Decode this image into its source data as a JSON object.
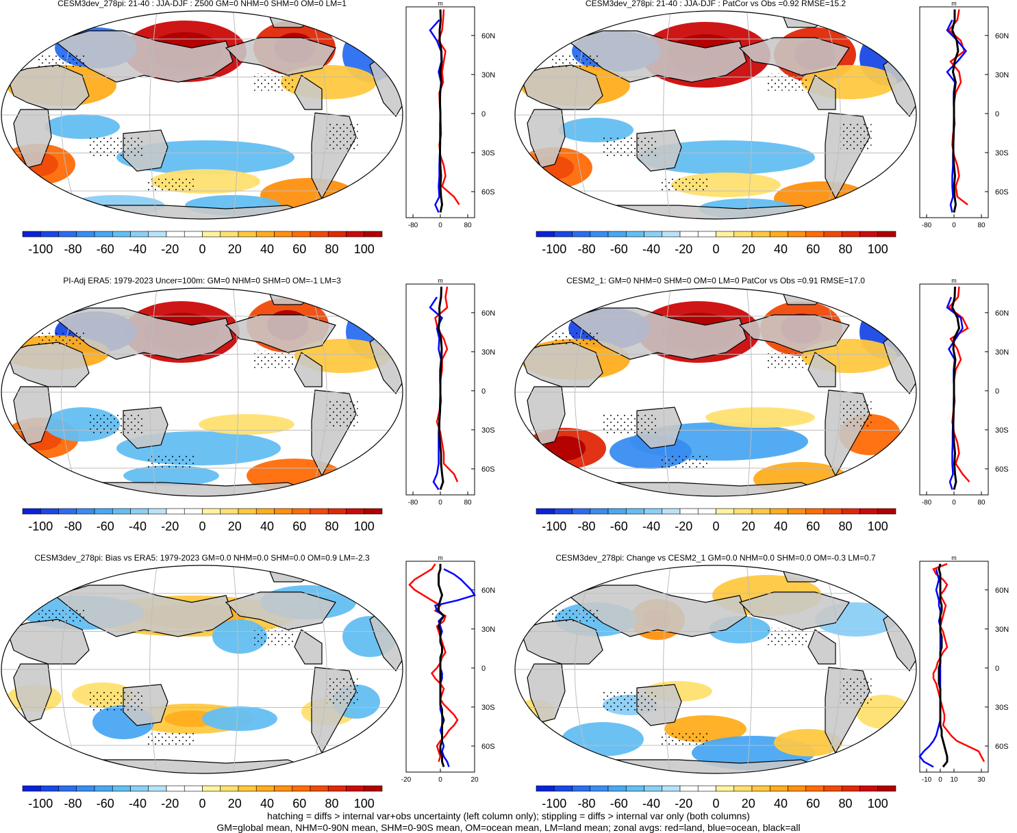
{
  "figure": {
    "footer_line1": "hatching = diffs > internal var+obs uncertainty (left column only); stippling = diffs > internal var only (both columns)",
    "footer_line2": "GM=global mean, NHM=0-90N mean, SHM=0-90S mean, OM=ocean mean, LM=land mean; zonal avgs: red=land, blue=ocean, black=all"
  },
  "colors": {
    "land": "#c8c8c8",
    "grid": "#bdbdbd",
    "zonal_land": "#ff0000",
    "zonal_ocean": "#0000ff",
    "zonal_all": "#000000",
    "stipple": "#000000",
    "palette": [
      "#0a22d8",
      "#1a48e6",
      "#2a6ef0",
      "#3a8cf0",
      "#4aa8f2",
      "#64bef2",
      "#8ccff5",
      "#b8e2f8",
      "#ffffff",
      "#ffffff",
      "#fff3a0",
      "#ffe070",
      "#ffc840",
      "#ffad1e",
      "#ff9010",
      "#ff6c08",
      "#f04a08",
      "#e02808",
      "#cc0a0a",
      "#b00000"
    ]
  },
  "chart_data": [
    {
      "type": "heatmap",
      "title": "CESM3dev_278pi: 21-40 : JJA-DJF : Z500 GM=0 NHM=0 SHM=0 OM=0 LM=1",
      "colorbar_labels": [
        "-100",
        "-80",
        "-60",
        "-40",
        "-20",
        "0",
        "20",
        "40",
        "60",
        "80",
        "100"
      ],
      "zonal_unit": "m",
      "zonal_xlim": [
        -100,
        100
      ],
      "zonal_xticks": [
        "-80",
        "0",
        "80"
      ],
      "lat_labels": [
        "60N",
        "30N",
        "0",
        "30S",
        "60S"
      ],
      "lats": [
        80,
        72,
        64,
        56,
        48,
        40,
        32,
        24,
        16,
        8,
        0,
        -8,
        -16,
        -24,
        -32,
        -40,
        -48,
        -56,
        -64,
        -70,
        -76
      ],
      "zonal_land": [
        10,
        8,
        5,
        -5,
        15,
        10,
        5,
        8,
        -3,
        -2,
        0,
        1,
        2,
        -3,
        0,
        10,
        15,
        5,
        40,
        55,
        null
      ],
      "zonal_ocean": [
        null,
        -3,
        -30,
        -10,
        2,
        3,
        -5,
        2,
        0,
        -1,
        0,
        -1,
        -1,
        0,
        -2,
        -3,
        -3,
        -5,
        -3,
        -15,
        -5
      ],
      "zonal_all": [
        0,
        1,
        -2,
        -2,
        3,
        4,
        0,
        3,
        -1,
        -1,
        0,
        0,
        0,
        -1,
        -1,
        0,
        2,
        0,
        2,
        5,
        0
      ]
    },
    {
      "type": "heatmap",
      "title": "CESM3dev_278pi: 21-40 : JJA-DJF : PatCor vs Obs =0.92 RMSE=15.2",
      "colorbar_labels": [
        "-100",
        "-80",
        "-60",
        "-40",
        "-20",
        "0",
        "20",
        "40",
        "60",
        "80",
        "100"
      ],
      "zonal_unit": "m",
      "zonal_xlim": [
        -100,
        100
      ],
      "zonal_xticks": [
        "-80",
        "0",
        "80"
      ],
      "lat_labels": [
        "60N",
        "30N",
        "0",
        "30S",
        "60S"
      ],
      "lats": [
        80,
        72,
        64,
        56,
        48,
        40,
        32,
        24,
        16,
        8,
        0,
        -8,
        -16,
        -24,
        -32,
        -40,
        -48,
        -56,
        -64,
        -70,
        -76
      ],
      "zonal_land": [
        15,
        10,
        -15,
        20,
        30,
        -10,
        15,
        20,
        5,
        0,
        0,
        2,
        -3,
        -5,
        0,
        10,
        15,
        5,
        10,
        40,
        null
      ],
      "zonal_ocean": [
        null,
        -5,
        -20,
        10,
        35,
        10,
        -20,
        3,
        -1,
        -1,
        0,
        -1,
        -1,
        -2,
        -3,
        -3,
        -5,
        -5,
        -3,
        -10,
        -5
      ],
      "zonal_all": [
        2,
        2,
        -5,
        8,
        12,
        2,
        -3,
        5,
        1,
        0,
        0,
        0,
        -1,
        -2,
        -2,
        0,
        3,
        0,
        2,
        5,
        0
      ]
    },
    {
      "type": "heatmap",
      "title": "PI-Adj ERA5: 1979-2023 Uncer=100m: GM=0 NHM=0 SHM=0 OM=-1 LM=3",
      "colorbar_labels": [
        "-100",
        "-80",
        "-60",
        "-40",
        "-20",
        "0",
        "20",
        "40",
        "60",
        "80",
        "100"
      ],
      "zonal_unit": "m",
      "zonal_xlim": [
        -100,
        100
      ],
      "zonal_xticks": [
        "-80",
        "0",
        "80"
      ],
      "lat_labels": [
        "60N",
        "30N",
        "0",
        "30S",
        "60S"
      ],
      "lats": [
        80,
        72,
        64,
        56,
        48,
        40,
        32,
        24,
        16,
        8,
        0,
        -8,
        -16,
        -24,
        -32,
        -40,
        -48,
        -56,
        -64,
        -70,
        -76
      ],
      "zonal_land": [
        20,
        15,
        20,
        -15,
        -8,
        10,
        20,
        5,
        5,
        0,
        0,
        2,
        -3,
        -10,
        0,
        5,
        10,
        10,
        40,
        50,
        null
      ],
      "zonal_ocean": [
        null,
        -10,
        -30,
        5,
        -10,
        -3,
        -5,
        2,
        -1,
        -1,
        0,
        -1,
        -2,
        -3,
        -5,
        -5,
        -5,
        -5,
        -10,
        -20,
        -5
      ],
      "zonal_all": [
        3,
        2,
        -3,
        -2,
        -5,
        2,
        4,
        3,
        1,
        0,
        0,
        0,
        -1,
        -3,
        -3,
        -1,
        2,
        2,
        5,
        8,
        0
      ]
    },
    {
      "type": "heatmap",
      "title": "CESM2_1: GM=0 NHM=0 SHM=0 OM=0 LM=0 PatCor vs Obs =0.91 RMSE=17.0",
      "colorbar_labels": [
        "-100",
        "-80",
        "-60",
        "-40",
        "-20",
        "0",
        "20",
        "40",
        "60",
        "80",
        "100"
      ],
      "zonal_unit": "m",
      "zonal_xlim": [
        -100,
        100
      ],
      "zonal_xticks": [
        "-80",
        "0",
        "80"
      ],
      "lat_labels": [
        "60N",
        "30N",
        "0",
        "30S",
        "60S"
      ],
      "lats": [
        80,
        72,
        64,
        56,
        48,
        40,
        32,
        24,
        16,
        8,
        0,
        -8,
        -16,
        -24,
        -32,
        -40,
        -48,
        -56,
        -64,
        -70,
        -76
      ],
      "zonal_land": [
        15,
        12,
        -15,
        25,
        40,
        -10,
        10,
        20,
        5,
        0,
        0,
        2,
        -2,
        -5,
        0,
        10,
        15,
        5,
        25,
        45,
        null
      ],
      "zonal_ocean": [
        null,
        -8,
        -20,
        20,
        25,
        5,
        -15,
        2,
        -1,
        -1,
        0,
        -1,
        -1,
        -3,
        -4,
        -4,
        -5,
        -5,
        -3,
        -12,
        -5
      ],
      "zonal_all": [
        3,
        2,
        -5,
        10,
        15,
        0,
        -2,
        4,
        1,
        0,
        0,
        0,
        -1,
        -2,
        -2,
        0,
        3,
        1,
        3,
        6,
        0
      ]
    },
    {
      "type": "heatmap",
      "title": "CESM3dev_278pi: Bias vs ERA5: 1979-2023 GM=0.0 NHM=0.0 SHM=0.0 OM=0.9 LM=-2.3",
      "colorbar_labels": [
        "-100",
        "-80",
        "-60",
        "-40",
        "-20",
        "0",
        "20",
        "40",
        "60",
        "80",
        "100"
      ],
      "zonal_unit": "m",
      "zonal_xlim": [
        -20,
        20
      ],
      "zonal_xticks": [
        "-20",
        "0",
        "20"
      ],
      "lat_labels": [
        "60N",
        "30N",
        "0",
        "30S",
        "60S"
      ],
      "lats": [
        80,
        76,
        72,
        68,
        64,
        60,
        56,
        52,
        48,
        44,
        40,
        36,
        32,
        28,
        24,
        20,
        16,
        12,
        8,
        4,
        0,
        -4,
        -8,
        -12,
        -16,
        -20,
        -24,
        -28,
        -32,
        -36,
        -40,
        -44,
        -48,
        -52,
        -56,
        -60,
        -64,
        -68,
        -72,
        -76
      ],
      "zonal_land": [
        -3,
        -5,
        -10,
        -15,
        -18,
        -15,
        -10,
        -5,
        0,
        -3,
        3,
        2,
        -2,
        -1,
        0,
        1,
        2,
        3,
        1,
        0,
        -2,
        -5,
        -3,
        0,
        2,
        1,
        0,
        2,
        5,
        8,
        10,
        8,
        5,
        3,
        0,
        -2,
        -1,
        0,
        -1,
        null
      ],
      "zonal_ocean": [
        null,
        2,
        8,
        12,
        15,
        18,
        20,
        10,
        -3,
        -2,
        2,
        -1,
        0,
        1,
        0,
        0,
        1,
        1,
        0,
        0,
        0,
        1,
        1,
        0,
        0,
        0,
        0,
        0,
        0,
        1,
        1,
        1,
        0,
        1,
        1,
        2,
        1,
        2,
        4,
        5
      ],
      "zonal_all": [
        0,
        0,
        -1,
        -1,
        -1,
        0,
        1,
        0,
        -1,
        -1,
        2,
        0,
        -1,
        0,
        0,
        0,
        1,
        1,
        0,
        0,
        0,
        0,
        0,
        0,
        0,
        0,
        0,
        0,
        1,
        1,
        2,
        1,
        1,
        1,
        1,
        0,
        0,
        1,
        1,
        2
      ]
    },
    {
      "type": "heatmap",
      "title": "CESM3dev_278pi: Change vs CESM2_1 GM=0.0 NHM=0.0 SHM=0.0 OM=-0.3 LM=0.7",
      "colorbar_labels": [
        "-100",
        "-80",
        "-60",
        "-40",
        "-20",
        "0",
        "20",
        "40",
        "60",
        "80",
        "100"
      ],
      "zonal_unit": "m",
      "zonal_xlim": [
        -15,
        35
      ],
      "zonal_xticks": [
        "-10",
        "0",
        "10",
        "30"
      ],
      "lat_labels": [
        "60N",
        "30N",
        "0",
        "30S",
        "60S"
      ],
      "lats": [
        80,
        76,
        72,
        68,
        64,
        60,
        56,
        52,
        48,
        44,
        40,
        36,
        32,
        28,
        24,
        20,
        16,
        12,
        8,
        4,
        0,
        -4,
        -8,
        -12,
        -16,
        -20,
        -24,
        -28,
        -32,
        -36,
        -40,
        -44,
        -48,
        -52,
        -56,
        -60,
        -64,
        -68,
        -72,
        -76
      ],
      "zonal_land": [
        5,
        -5,
        -3,
        2,
        5,
        3,
        0,
        2,
        4,
        3,
        2,
        1,
        0,
        2,
        3,
        4,
        5,
        2,
        0,
        -2,
        -3,
        -5,
        -5,
        -3,
        -2,
        -1,
        0,
        1,
        2,
        3,
        3,
        2,
        5,
        8,
        12,
        20,
        28,
        30,
        32,
        null
      ],
      "zonal_ocean": [
        null,
        -3,
        -2,
        -1,
        -2,
        -3,
        -2,
        -1,
        -1,
        0,
        0,
        -1,
        0,
        0,
        0,
        0,
        0,
        0,
        0,
        0,
        0,
        0,
        0,
        0,
        0,
        0,
        0,
        0,
        0,
        0,
        0,
        -1,
        -2,
        -3,
        -5,
        -8,
        -12,
        -15,
        -12,
        -5
      ],
      "zonal_all": [
        0,
        -1,
        0,
        0,
        0,
        0,
        0,
        0,
        1,
        1,
        0,
        0,
        0,
        0,
        1,
        1,
        1,
        0,
        0,
        0,
        -1,
        -1,
        -1,
        -1,
        0,
        0,
        0,
        0,
        0,
        0,
        0,
        0,
        1,
        1,
        2,
        3,
        4,
        5,
        5,
        2
      ]
    }
  ]
}
